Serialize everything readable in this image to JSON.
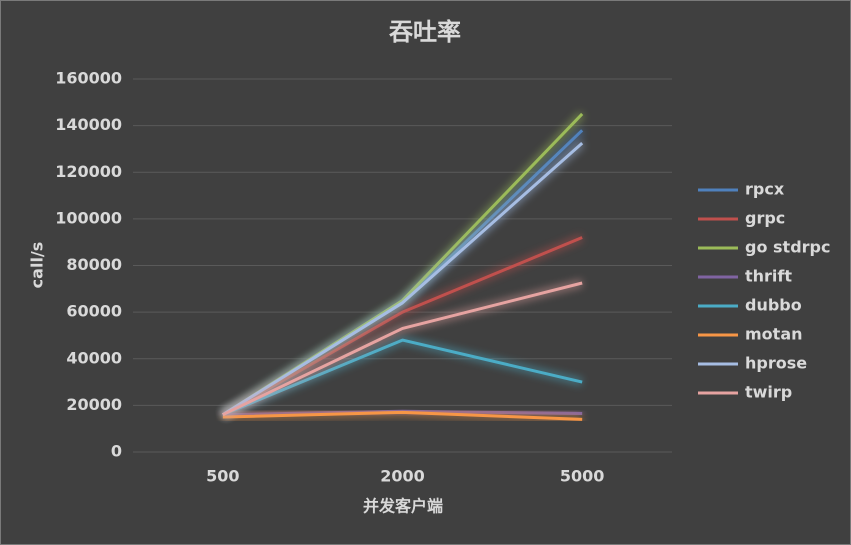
{
  "chart_data": {
    "type": "line",
    "title": "吞吐率",
    "x_label": "并发客户端",
    "y_label": "call/s",
    "categories": [
      "500",
      "2000",
      "5000"
    ],
    "series": [
      {
        "name": "rpcx",
        "color": "#4f81bd",
        "values": [
          16000,
          64000,
          138000
        ]
      },
      {
        "name": "grpc",
        "color": "#c0504d",
        "values": [
          16000,
          60000,
          92000
        ]
      },
      {
        "name": "go stdrpc",
        "color": "#9bbb59",
        "values": [
          16000,
          65000,
          145000
        ]
      },
      {
        "name": "thrift",
        "color": "#8064a2",
        "values": [
          16000,
          17500,
          16500
        ]
      },
      {
        "name": "dubbo",
        "color": "#4bacc6",
        "values": [
          16000,
          48000,
          30000
        ]
      },
      {
        "name": "motan",
        "color": "#f79646",
        "values": [
          15000,
          17000,
          14000
        ]
      },
      {
        "name": "hprose",
        "color": "#a6bde3",
        "values": [
          16000,
          64000,
          132500
        ]
      },
      {
        "name": "twirp",
        "color": "#e6a3a1",
        "values": [
          16000,
          53000,
          72500
        ]
      }
    ],
    "ylim": [
      0,
      160000
    ],
    "yticks": [
      0,
      20000,
      40000,
      60000,
      80000,
      100000,
      120000,
      140000,
      160000
    ],
    "grid": true,
    "legend": "right"
  }
}
